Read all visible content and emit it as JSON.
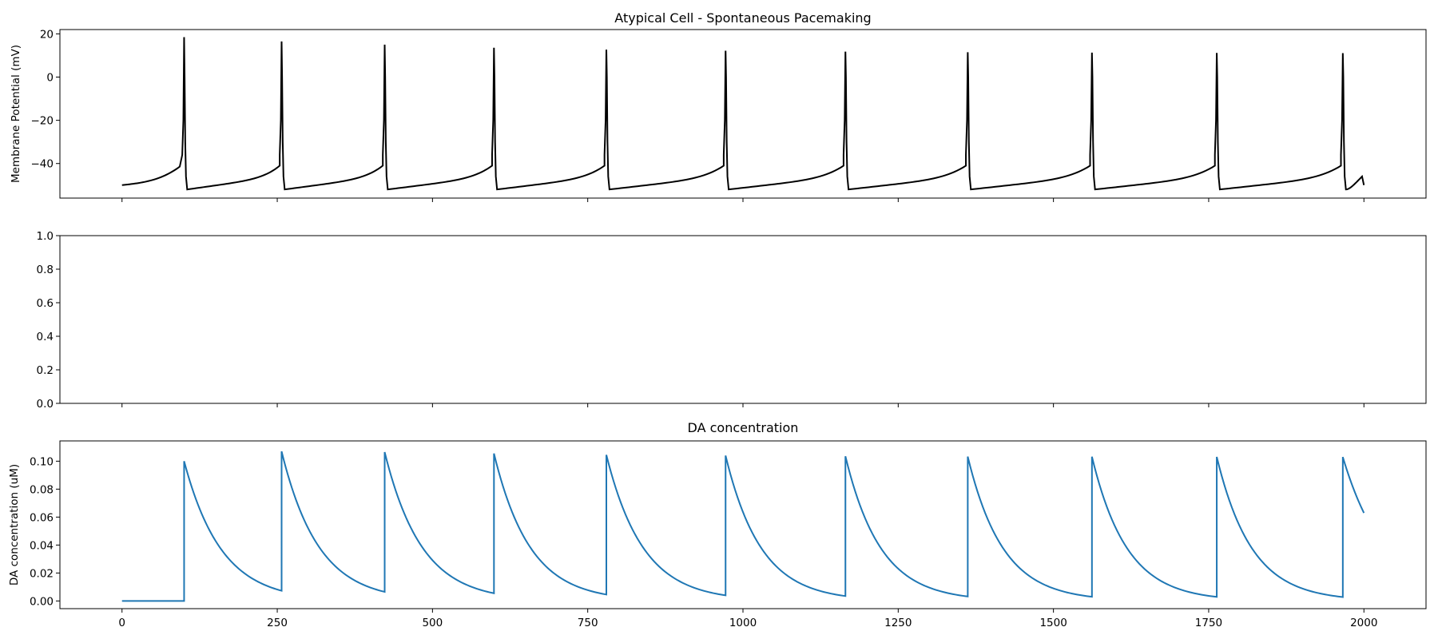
{
  "chart_data": [
    {
      "type": "line",
      "title": "Atypical Cell - Spontaneous Pacemaking",
      "xlabel": "",
      "ylabel": "Membrane Potential (mV)",
      "xlim": [
        -100,
        2100
      ],
      "ylim": [
        -56,
        22
      ],
      "yticks": [
        -40,
        -20,
        0,
        20
      ],
      "ytick_labels": [
        "−40",
        "−20",
        "0",
        "20"
      ],
      "x_tick_labels_visible": false,
      "color": "#000000",
      "spike_times": [
        100,
        257,
        423,
        599,
        780,
        972,
        1165,
        1362,
        1562,
        1763,
        1966
      ],
      "spike_peaks": [
        18.5,
        16.5,
        15,
        13.6,
        12.7,
        12.2,
        11.8,
        11.5,
        11.3,
        11.2,
        11.1
      ],
      "resting_start": -50,
      "after_spike_trough": -52,
      "pre_spike_level": -44,
      "x_end": 2000,
      "end_value": -50
    },
    {
      "type": "line",
      "title": "",
      "xlabel": "",
      "ylabel": "",
      "xlim": [
        -100,
        2100
      ],
      "ylim": [
        0,
        1
      ],
      "yticks": [
        0,
        0.2,
        0.4,
        0.6,
        0.8,
        1.0
      ],
      "ytick_labels": [
        "0.0",
        "0.2",
        "0.4",
        "0.6",
        "0.8",
        "1.0"
      ],
      "x_tick_labels_visible": false,
      "series": []
    },
    {
      "type": "line",
      "title": "DA concentration",
      "xlabel": "",
      "ylabel": "DA concentration (uM)",
      "xlim": [
        -100,
        2100
      ],
      "ylim": [
        -0.0055,
        0.1145
      ],
      "yticks": [
        0,
        0.02,
        0.04,
        0.06,
        0.08,
        0.1
      ],
      "ytick_labels": [
        "0.00",
        "0.02",
        "0.04",
        "0.06",
        "0.08",
        "0.10"
      ],
      "xticks": [
        0,
        250,
        500,
        750,
        1000,
        1250,
        1500,
        1750,
        2000
      ],
      "xtick_labels": [
        "0",
        "250",
        "500",
        "750",
        "1000",
        "1250",
        "1500",
        "1750",
        "2000"
      ],
      "color": "#1f77b4",
      "release_times": [
        100,
        257,
        423,
        599,
        780,
        972,
        1165,
        1362,
        1562,
        1763,
        1966
      ],
      "peak_values": [
        0.1,
        0.107,
        0.1065,
        0.1055,
        0.1045,
        0.104,
        0.1035,
        0.1033,
        0.1032,
        0.1031,
        0.103
      ],
      "trough_values": [
        0.0073,
        0.0065,
        0.0055,
        0.0046,
        0.004,
        0.0035,
        0.0032,
        0.003,
        0.0029,
        0.0028
      ],
      "x_end": 2000,
      "end_value": 0.063
    }
  ]
}
